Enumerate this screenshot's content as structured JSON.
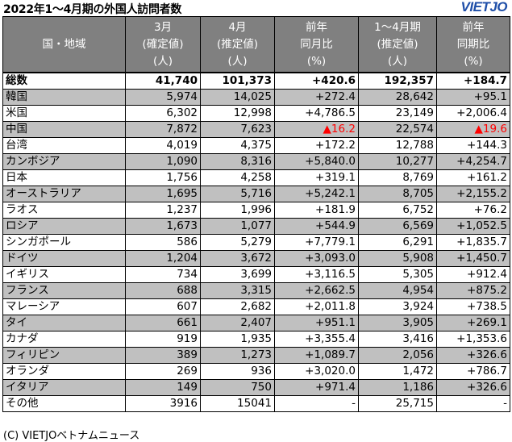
{
  "title": "2022年1～4月期の外国人訪問者数",
  "logo": "VIETJO",
  "headers": [
    [
      "国・地域"
    ],
    [
      "3月",
      "(確定値)",
      "(人)"
    ],
    [
      "4月",
      "(推定値)",
      "(人)"
    ],
    [
      "前年",
      "同月比",
      "(%)"
    ],
    [
      "1～4月期",
      "(推定値)",
      "(人)"
    ],
    [
      "前年",
      "同期比",
      "(%)"
    ]
  ],
  "rows": [
    {
      "name": "総数",
      "march": "41,740",
      "april": "101,373",
      "yoy_month": "+420.6",
      "jan_apr": "192,357",
      "yoy_period": "+184.7",
      "style": "total"
    },
    {
      "name": "韓国",
      "march": "5,974",
      "april": "14,025",
      "yoy_month": "+272.4",
      "jan_apr": "28,642",
      "yoy_period": "+95.1",
      "style": "shade"
    },
    {
      "name": "米国",
      "march": "6,302",
      "april": "12,998",
      "yoy_month": "+4,786.5",
      "jan_apr": "23,149",
      "yoy_period": "+2,006.4",
      "style": ""
    },
    {
      "name": "中国",
      "march": "7,872",
      "april": "7,623",
      "yoy_month": "▲16.2",
      "jan_apr": "22,574",
      "yoy_period": "▲19.6",
      "style": "shade",
      "neg_month": true,
      "neg_period": true
    },
    {
      "name": "台湾",
      "march": "4,019",
      "april": "4,375",
      "yoy_month": "+172.2",
      "jan_apr": "12,788",
      "yoy_period": "+144.3",
      "style": ""
    },
    {
      "name": "カンボジア",
      "march": "1,090",
      "april": "8,316",
      "yoy_month": "+5,840.0",
      "jan_apr": "10,277",
      "yoy_period": "+4,254.7",
      "style": "shade"
    },
    {
      "name": "日本",
      "march": "1,756",
      "april": "4,258",
      "yoy_month": "+319.1",
      "jan_apr": "8,769",
      "yoy_period": "+161.2",
      "style": ""
    },
    {
      "name": "オーストラリア",
      "march": "1,695",
      "april": "5,716",
      "yoy_month": "+5,242.1",
      "jan_apr": "8,705",
      "yoy_period": "+2,155.2",
      "style": "shade"
    },
    {
      "name": "ラオス",
      "march": "1,237",
      "april": "1,996",
      "yoy_month": "+181.9",
      "jan_apr": "6,752",
      "yoy_period": "+76.2",
      "style": ""
    },
    {
      "name": "ロシア",
      "march": "1,673",
      "april": "1,077",
      "yoy_month": "+544.9",
      "jan_apr": "6,569",
      "yoy_period": "+1,052.5",
      "style": "shade"
    },
    {
      "name": "シンガポール",
      "march": "586",
      "april": "5,279",
      "yoy_month": "+7,779.1",
      "jan_apr": "6,291",
      "yoy_period": "+1,835.7",
      "style": ""
    },
    {
      "name": "ドイツ",
      "march": "1,204",
      "april": "3,672",
      "yoy_month": "+3,093.0",
      "jan_apr": "5,908",
      "yoy_period": "+1,450.7",
      "style": "shade"
    },
    {
      "name": "イギリス",
      "march": "734",
      "april": "3,699",
      "yoy_month": "+3,116.5",
      "jan_apr": "5,305",
      "yoy_period": "+912.4",
      "style": ""
    },
    {
      "name": "フランス",
      "march": "688",
      "april": "3,315",
      "yoy_month": "+2,662.5",
      "jan_apr": "4,954",
      "yoy_period": "+875.2",
      "style": "shade"
    },
    {
      "name": "マレーシア",
      "march": "607",
      "april": "2,682",
      "yoy_month": "+2,011.8",
      "jan_apr": "3,924",
      "yoy_period": "+738.5",
      "style": ""
    },
    {
      "name": "タイ",
      "march": "661",
      "april": "2,407",
      "yoy_month": "+951.1",
      "jan_apr": "3,905",
      "yoy_period": "+269.1",
      "style": "shade"
    },
    {
      "name": "カナダ",
      "march": "919",
      "april": "1,935",
      "yoy_month": "+3,355.4",
      "jan_apr": "3,416",
      "yoy_period": "+1,353.6",
      "style": ""
    },
    {
      "name": "フィリピン",
      "march": "389",
      "april": "1,273",
      "yoy_month": "+1,089.7",
      "jan_apr": "2,056",
      "yoy_period": "+326.6",
      "style": "shade"
    },
    {
      "name": "オランダ",
      "march": "269",
      "april": "936",
      "yoy_month": "+3,020.0",
      "jan_apr": "1,472",
      "yoy_period": "+786.7",
      "style": ""
    },
    {
      "name": "イタリア",
      "march": "149",
      "april": "750",
      "yoy_month": "+971.4",
      "jan_apr": "1,186",
      "yoy_period": "+326.6",
      "style": "shade"
    },
    {
      "name": "その他",
      "march": "3916",
      "april": "15041",
      "yoy_month": "-",
      "jan_apr": "25,715",
      "yoy_period": "-",
      "style": ""
    }
  ],
  "footer": "(C) VIETJOベトナムニュース",
  "colors": {
    "header_bg": "#808080",
    "shade_bg": "#c0c0c0",
    "negative": "#ff0000",
    "logo": "#1f4fa8"
  }
}
